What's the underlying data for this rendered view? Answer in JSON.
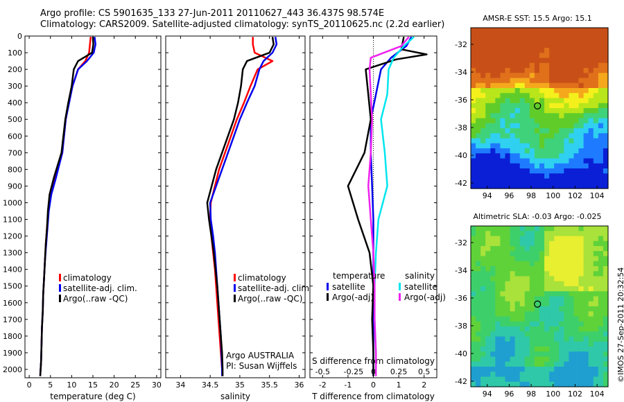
{
  "header": {
    "line1": "Argo profile: CS 5901635_133 27-Jun-2011 20110627_443 36.437S 98.574E",
    "line2": "Climatology: CARS2009. Satellite-adjusted climatology: synTS_20110625.nc (2.2d earlier)"
  },
  "credit": "©IMOS 27-Sep-2011 20:32:54",
  "colors": {
    "climatology": "#ff0000",
    "satellite": "#0000ee",
    "argo": "#000000",
    "sal_satellite": "#00e5ee",
    "sal_argo": "#ee22ee"
  },
  "chart_data": [
    {
      "type": "line",
      "xlabel": "temperature (deg C)",
      "ylabel": "",
      "xlim": [
        -1,
        31
      ],
      "ylim": [
        2050,
        0
      ],
      "xticks": [
        "0",
        "5",
        "10",
        "15",
        "20",
        "25",
        "30"
      ],
      "yticks": [
        "0",
        "100",
        "200",
        "300",
        "400",
        "500",
        "600",
        "700",
        "800",
        "900",
        "1000",
        "1100",
        "1200",
        "1300",
        "1400",
        "1500",
        "1600",
        "1700",
        "1800",
        "1900",
        "2000"
      ],
      "legend_position": "bottom-center",
      "series": [
        {
          "name": "climatology",
          "color": "#ff0000",
          "x": [
            14.5,
            14.3,
            14.1,
            13.2,
            11.5,
            10.2,
            9.3,
            8.6,
            7.8,
            6.2,
            5.0,
            4.5,
            4.2,
            3.9,
            3.7,
            3.5,
            3.3,
            3.2,
            3.0,
            2.9,
            2.8,
            2.6
          ],
          "y": [
            5,
            50,
            100,
            150,
            200,
            300,
            400,
            500,
            700,
            850,
            950,
            1050,
            1150,
            1250,
            1350,
            1450,
            1550,
            1650,
            1750,
            1850,
            1950,
            2040
          ]
        },
        {
          "name": "satellite-adj. clim.",
          "color": "#0000ee",
          "x": [
            15.4,
            15.6,
            15.2,
            13.6,
            11.5,
            10.2,
            9.4,
            8.6,
            7.8,
            6.3,
            5.2,
            4.6,
            4.3,
            4.0,
            3.7,
            3.5,
            3.3,
            3.2,
            3.0,
            2.9,
            2.8,
            2.6
          ],
          "y": [
            5,
            50,
            100,
            150,
            200,
            300,
            400,
            500,
            700,
            850,
            950,
            1050,
            1150,
            1250,
            1350,
            1450,
            1550,
            1650,
            1750,
            1850,
            1950,
            2040
          ]
        },
        {
          "name": "Argo(..raw -QC)",
          "color": "#000000",
          "x": [
            15.0,
            15.1,
            14.8,
            11.5,
            10.5,
            10.0,
            9.2,
            8.5,
            7.6,
            5.8,
            4.8,
            4.4,
            4.2,
            3.9,
            3.7,
            3.5,
            3.3,
            3.2,
            3.0,
            2.9,
            2.8,
            2.6
          ],
          "y": [
            5,
            50,
            100,
            150,
            200,
            300,
            400,
            500,
            700,
            850,
            950,
            1050,
            1150,
            1250,
            1350,
            1450,
            1550,
            1650,
            1750,
            1850,
            1950,
            2040
          ]
        }
      ]
    },
    {
      "type": "line",
      "xlabel": "salinity",
      "ylabel": "",
      "xlim": [
        33.75,
        36.1
      ],
      "ylim": [
        2050,
        0
      ],
      "xticks": [
        "34",
        "34.5",
        "35",
        "35.5",
        "36"
      ],
      "legend_position": "bottom-center",
      "annotation": [
        "Argo AUSTRALIA",
        "PI: Susan Wijffels"
      ],
      "series": [
        {
          "name": "climatology",
          "color": "#ff0000",
          "x": [
            35.22,
            35.22,
            35.25,
            35.55,
            35.3,
            35.18,
            35.07,
            34.95,
            34.85,
            34.65,
            34.51,
            34.5,
            34.52,
            34.55,
            34.58,
            34.6,
            34.62,
            34.64,
            34.66,
            34.68,
            34.7,
            34.71
          ],
          "y": [
            5,
            50,
            100,
            150,
            200,
            300,
            400,
            500,
            600,
            800,
            1000,
            1100,
            1200,
            1300,
            1400,
            1500,
            1600,
            1700,
            1800,
            1900,
            2000,
            2040
          ]
        },
        {
          "name": "satellite-adj. clim.",
          "color": "#0000ee",
          "x": [
            35.6,
            35.62,
            35.55,
            35.4,
            35.33,
            35.25,
            35.12,
            35.0,
            34.9,
            34.7,
            34.5,
            34.51,
            34.55,
            34.58,
            34.6,
            34.62,
            34.64,
            34.66,
            34.68,
            34.69,
            34.7,
            34.7
          ],
          "y": [
            5,
            50,
            100,
            150,
            200,
            300,
            400,
            500,
            600,
            800,
            1000,
            1100,
            1200,
            1300,
            1400,
            1500,
            1600,
            1700,
            1800,
            1900,
            2000,
            2040
          ]
        },
        {
          "name": "Argo(..raw -QC)",
          "color": "#000000",
          "x": [
            35.55,
            35.57,
            35.5,
            35.12,
            35.05,
            35.02,
            34.97,
            34.9,
            34.8,
            34.6,
            34.45,
            34.48,
            34.52,
            34.56,
            34.59,
            34.62,
            34.64,
            34.66,
            34.68,
            34.7,
            34.71,
            34.71
          ],
          "y": [
            5,
            50,
            100,
            150,
            200,
            300,
            400,
            500,
            600,
            800,
            1000,
            1100,
            1200,
            1300,
            1400,
            1500,
            1600,
            1700,
            1800,
            1900,
            2000,
            2040
          ]
        }
      ]
    },
    {
      "type": "line",
      "xlabel": "T difference from climatology",
      "x2label": "S difference from climatology",
      "xlim": [
        -2.5,
        2.5
      ],
      "ylim": [
        2050,
        0
      ],
      "xticks": [
        "-2",
        "-1",
        "0",
        "1",
        "2"
      ],
      "x2ticks": [
        "-0.5",
        "-0.25",
        "0",
        "0.25",
        "0.5"
      ],
      "legend_position": "bottom",
      "legend_groups": [
        "temperature",
        "salinity"
      ],
      "series": [
        {
          "name": "satellite",
          "group": "temperature",
          "color": "#0000ee",
          "x": [
            1.5,
            1.3,
            0.7,
            0.3,
            0.1,
            -0.1,
            -0.1,
            -0.05,
            0.0,
            0.0,
            0.0,
            0.0,
            0.0,
            0.0
          ],
          "y": [
            5,
            60,
            130,
            200,
            350,
            500,
            700,
            900,
            1100,
            1300,
            1500,
            1700,
            1900,
            2040
          ]
        },
        {
          "name": "Argo(-adj)",
          "group": "temperature",
          "color": "#000000",
          "x": [
            1.2,
            1.1,
            2.1,
            0.9,
            -0.3,
            -0.2,
            -0.1,
            -0.35,
            -1.0,
            -0.6,
            -0.15,
            0.0,
            -0.05,
            0.0,
            0.0
          ],
          "y": [
            5,
            80,
            110,
            140,
            200,
            350,
            500,
            700,
            900,
            1100,
            1300,
            1500,
            1700,
            1900,
            2040
          ]
        },
        {
          "name": "satellite",
          "group": "salinity",
          "color": "#00e5ee",
          "x": [
            1.6,
            1.2,
            0.8,
            0.6,
            0.55,
            0.3,
            0.45,
            0.55,
            0.2,
            0.1,
            0.05,
            0.05,
            0.1,
            0.1
          ],
          "y": [
            5,
            60,
            130,
            200,
            350,
            500,
            700,
            900,
            1100,
            1300,
            1500,
            1700,
            1900,
            2040
          ]
        },
        {
          "name": "Argo(-adj)",
          "group": "salinity",
          "color": "#ee22ee",
          "x": [
            1.4,
            1.1,
            -0.1,
            -0.15,
            -0.1,
            -0.05,
            -0.1,
            -0.2,
            -0.1,
            0.0,
            0.05,
            0.05,
            0.1,
            0.1
          ],
          "y": [
            5,
            60,
            130,
            200,
            350,
            500,
            700,
            900,
            1100,
            1300,
            1500,
            1700,
            1900,
            2040
          ]
        }
      ]
    },
    {
      "type": "heatmap",
      "title": "AMSR-E SST: 15.5 Argo: 15.1",
      "xlim": [
        92.5,
        105
      ],
      "ylim": [
        -42.4,
        -30.8
      ],
      "xticks": [
        "94",
        "96",
        "98",
        "100",
        "102",
        "104"
      ],
      "yticks": [
        "-32",
        "-34",
        "-36",
        "-38",
        "-40",
        "-42"
      ],
      "marker": {
        "lon": 98.574,
        "lat": -36.437
      },
      "colormap": [
        "#0a1fd6",
        "#1e7bff",
        "#2fd0f0",
        "#3fd27a",
        "#60cc2a",
        "#b8e61a",
        "#f4f01c",
        "#f5a81c",
        "#e0701a",
        "#c85018"
      ]
    },
    {
      "type": "heatmap",
      "title": "Altimetric SLA: -0.03 Argo: -0.025",
      "xlim": [
        92.5,
        105
      ],
      "ylim": [
        -42.4,
        -30.8
      ],
      "xticks": [
        "94",
        "96",
        "98",
        "100",
        "102",
        "104"
      ],
      "yticks": [
        "-32",
        "-34",
        "-36",
        "-38",
        "-40",
        "-42"
      ],
      "marker": {
        "lon": 98.574,
        "lat": -36.437
      },
      "colormap": [
        "#1e9fd0",
        "#2fc8a8",
        "#3dcf6a",
        "#5fd23a",
        "#a8e23a",
        "#e8ee30"
      ]
    }
  ]
}
